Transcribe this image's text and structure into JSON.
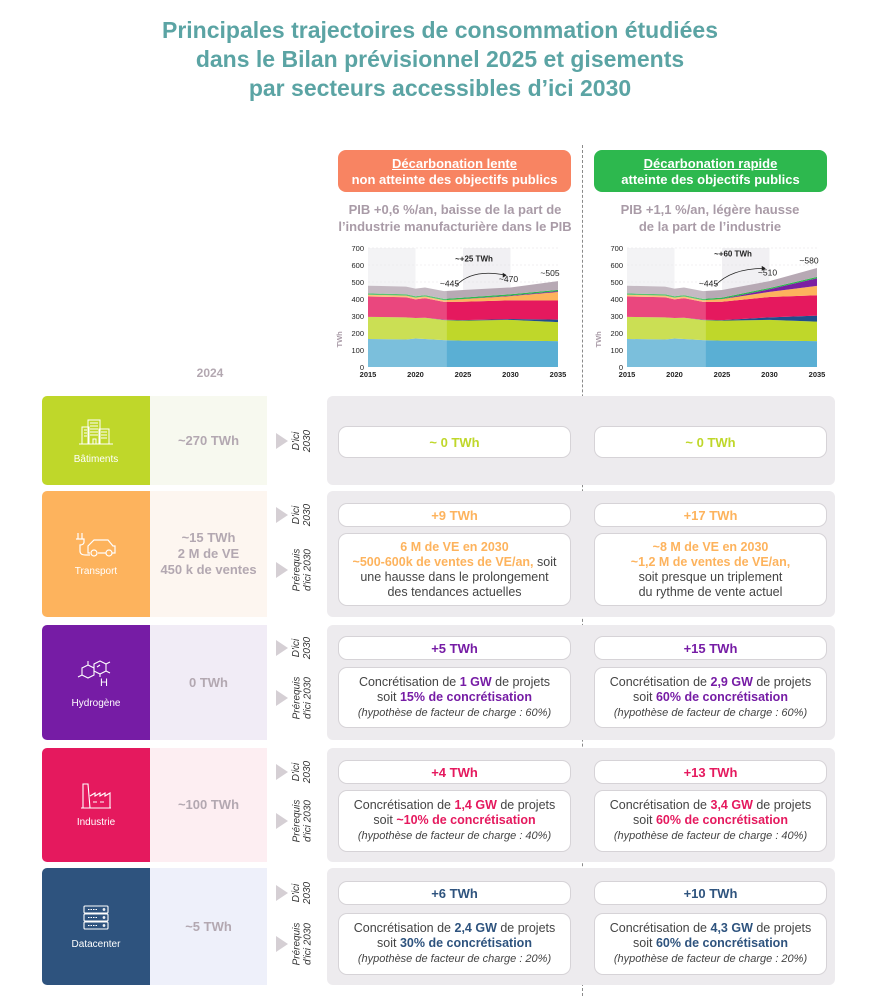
{
  "title": [
    "Principales trajectoires de consommation étudiées",
    "dans le Bilan prévisionnel 2025 et gisements",
    "par secteurs accessibles d’ici 2030"
  ],
  "scenarios": [
    {
      "title": "Décarbonation lente",
      "subtitle": "non atteinte des objectifs publics",
      "color": "#F88462",
      "context": [
        "PIB +0,6 %/an, baisse de la part de",
        "l’industrie manufacturière dans le PIB"
      ]
    },
    {
      "title": "Décarbonation rapide",
      "subtitle": "atteinte des objectifs publics",
      "color": "#2DB84E",
      "context": [
        "PIB +1,1 %/an, légère hausse",
        "de la part de l’industrie"
      ]
    }
  ],
  "year_2024_label": "2024",
  "chart_data": [
    {
      "type": "area",
      "stacked": true,
      "ylabel": "TWh",
      "ylim": [
        0,
        700
      ],
      "xlim": [
        2015,
        2035
      ],
      "yticks": [
        0,
        100,
        200,
        300,
        400,
        500,
        600,
        700
      ],
      "xticks": [
        2015,
        2020,
        2025,
        2030,
        2035
      ],
      "x": [
        2015,
        2019,
        2020,
        2021,
        2023,
        2025,
        2030,
        2035
      ],
      "series": [
        {
          "color": "#5AAFD4",
          "values": [
            165,
            162,
            168,
            165,
            158,
            155,
            155,
            152
          ]
        },
        {
          "color": "#BFD72A",
          "values": [
            130,
            130,
            120,
            125,
            118,
            118,
            122,
            112
          ]
        },
        {
          "color": "#1F4E8C",
          "values": [
            0,
            0,
            0,
            0,
            2,
            3,
            5,
            15
          ]
        },
        {
          "color": "#E5195E",
          "values": [
            120,
            118,
            110,
            115,
            105,
            108,
            110,
            112
          ]
        },
        {
          "color": "#FDB35D",
          "values": [
            10,
            10,
            10,
            10,
            10,
            15,
            25,
            50
          ]
        },
        {
          "color": "#7B1FA2",
          "values": [
            0,
            0,
            0,
            0,
            0,
            1,
            3,
            5
          ]
        },
        {
          "color": "#2DB84E",
          "values": [
            8,
            8,
            8,
            8,
            8,
            8,
            8,
            8
          ]
        },
        {
          "color": "#B7A9B4",
          "values": [
            45,
            45,
            45,
            45,
            45,
            45,
            40,
            51
          ]
        }
      ],
      "annotations": [
        {
          "text": "~445",
          "x": 2024,
          "y": 445
        },
        {
          "text": "~470",
          "x": 2030,
          "y": 470
        },
        {
          "text": "~505",
          "x": 2035,
          "y": 505
        },
        {
          "text": "~+25 TWh",
          "x": 2027,
          "y": 620
        }
      ]
    },
    {
      "type": "area",
      "stacked": true,
      "ylabel": "TWh",
      "ylim": [
        0,
        700
      ],
      "xlim": [
        2015,
        2035
      ],
      "yticks": [
        0,
        100,
        200,
        300,
        400,
        500,
        600,
        700
      ],
      "xticks": [
        2015,
        2020,
        2025,
        2030,
        2035
      ],
      "x": [
        2015,
        2019,
        2020,
        2021,
        2023,
        2025,
        2030,
        2035
      ],
      "series": [
        {
          "color": "#5AAFD4",
          "values": [
            165,
            162,
            168,
            165,
            158,
            155,
            155,
            152
          ]
        },
        {
          "color": "#BFD72A",
          "values": [
            130,
            130,
            120,
            125,
            118,
            118,
            122,
            115
          ]
        },
        {
          "color": "#1F4E8C",
          "values": [
            0,
            0,
            0,
            0,
            2,
            3,
            15,
            35
          ]
        },
        {
          "color": "#E5195E",
          "values": [
            120,
            118,
            110,
            115,
            105,
            108,
            120,
            120
          ]
        },
        {
          "color": "#FDB35D",
          "values": [
            10,
            10,
            10,
            10,
            10,
            15,
            30,
            55
          ]
        },
        {
          "color": "#7B1FA2",
          "values": [
            0,
            0,
            0,
            0,
            0,
            1,
            15,
            45
          ]
        },
        {
          "color": "#2DB84E",
          "values": [
            8,
            8,
            8,
            8,
            8,
            8,
            8,
            8
          ]
        },
        {
          "color": "#B7A9B4",
          "values": [
            45,
            45,
            45,
            45,
            45,
            45,
            40,
            52
          ]
        }
      ],
      "annotations": [
        {
          "text": "~445",
          "x": 2024,
          "y": 445
        },
        {
          "text": "~510",
          "x": 2030,
          "y": 510
        },
        {
          "text": "~580",
          "x": 2035,
          "y": 580
        },
        {
          "text": "~+60 TWh",
          "x": 2027,
          "y": 650
        }
      ]
    }
  ],
  "rows": [
    {
      "label": "Bâtiments",
      "icon": "building-icon",
      "color": "#BFD72A",
      "light": "#F7F9EF",
      "accent": "#BFD72A",
      "value_2024": [
        "~270 TWh"
      ],
      "doici": "D'ici 2030",
      "left": {
        "gain": "~ 0 TWh"
      },
      "right": {
        "gain": "~ 0 TWh"
      }
    },
    {
      "label": "Transport",
      "icon": "electric-car-icon",
      "color": "#FDB35D",
      "light": "#FDF6F0",
      "accent": "#FDB35D",
      "value_2024": [
        "~15 TWh",
        "2 M de VE",
        "450 k de ventes"
      ],
      "doici": "D'ici 2030",
      "prereq": "Prérequis d'ici 2030",
      "left": {
        "gain": "+9 TWh",
        "prereq": [
          [
            {
              "t": "6 M de VE en 2030",
              "s": "a"
            }
          ],
          [
            {
              "t": "~500-600k de ventes de VE/an,",
              "s": "a"
            },
            {
              "t": " soit",
              "s": "p"
            }
          ],
          [
            {
              "t": "une hausse dans le prolongement",
              "s": "p"
            }
          ],
          [
            {
              "t": "des tendances actuelles",
              "s": "p"
            }
          ]
        ]
      },
      "right": {
        "gain": "+17 TWh",
        "prereq": [
          [
            {
              "t": "~8 M de VE en 2030",
              "s": "a"
            }
          ],
          [
            {
              "t": "~1,2 M de ventes de VE/an,",
              "s": "a"
            }
          ],
          [
            {
              "t": "soit presque un triplement",
              "s": "p"
            }
          ],
          [
            {
              "t": "du rythme de vente actuel",
              "s": "p"
            }
          ]
        ]
      }
    },
    {
      "label": "Hydrogène",
      "icon": "hydrogen-molecule-icon",
      "color": "#761CA5",
      "light": "#F1ECF6",
      "accent": "#761CA5",
      "value_2024": [
        "0 TWh"
      ],
      "doici": "D'ici 2030",
      "prereq": "Prérequis d'ici 2030",
      "left": {
        "gain": "+5 TWh",
        "prereq": [
          [
            {
              "t": "Concrétisation de ",
              "s": "p"
            },
            {
              "t": "1 GW",
              "s": "a"
            },
            {
              "t": " de projets",
              "s": "p"
            }
          ],
          [
            {
              "t": "soit ",
              "s": "p"
            },
            {
              "t": "15% de concrétisation",
              "s": "a"
            }
          ],
          [
            {
              "t": "(hypothèse de facteur de charge : 60%)",
              "s": "i"
            }
          ]
        ]
      },
      "right": {
        "gain": "+15 TWh",
        "prereq": [
          [
            {
              "t": "Concrétisation de ",
              "s": "p"
            },
            {
              "t": "2,9 GW",
              "s": "a"
            },
            {
              "t": " de projets",
              "s": "p"
            }
          ],
          [
            {
              "t": "soit ",
              "s": "p"
            },
            {
              "t": "60% de concrétisation",
              "s": "a"
            }
          ],
          [
            {
              "t": "(hypothèse de facteur de charge : 60%)",
              "s": "i"
            }
          ]
        ]
      }
    },
    {
      "label": "Industrie",
      "icon": "factory-icon",
      "color": "#E5195E",
      "light": "#FDEEF2",
      "accent": "#E5195E",
      "value_2024": [
        "~100 TWh"
      ],
      "doici": "D'ici 2030",
      "prereq": "Prérequis d'ici 2030",
      "left": {
        "gain": "+4 TWh",
        "prereq": [
          [
            {
              "t": "Concrétisation de ",
              "s": "p"
            },
            {
              "t": "1,4 GW",
              "s": "a"
            },
            {
              "t": " de projets",
              "s": "p"
            }
          ],
          [
            {
              "t": "soit ",
              "s": "p"
            },
            {
              "t": "~10% de concrétisation",
              "s": "a"
            }
          ],
          [
            {
              "t": "(hypothèse de facteur de charge : 40%)",
              "s": "i"
            }
          ]
        ]
      },
      "right": {
        "gain": "+13 TWh",
        "prereq": [
          [
            {
              "t": "Concrétisation de ",
              "s": "p"
            },
            {
              "t": "3,4 GW",
              "s": "a"
            },
            {
              "t": " de projets",
              "s": "p"
            }
          ],
          [
            {
              "t": "soit ",
              "s": "p"
            },
            {
              "t": "60% de concrétisation",
              "s": "a"
            }
          ],
          [
            {
              "t": "(hypothèse de facteur de charge : 40%)",
              "s": "i"
            }
          ]
        ]
      }
    },
    {
      "label": "Datacenter",
      "icon": "server-rack-icon",
      "color": "#2E537E",
      "light": "#EEF0FA",
      "accent": "#2E537E",
      "value_2024": [
        "~5 TWh"
      ],
      "doici": "D'ici 2030",
      "prereq": "Prérequis d'ici 2030",
      "left": {
        "gain": "+6 TWh",
        "prereq": [
          [
            {
              "t": "Concrétisation de ",
              "s": "p"
            },
            {
              "t": "2,4 GW",
              "s": "a"
            },
            {
              "t": " de projets",
              "s": "p"
            }
          ],
          [
            {
              "t": "soit ",
              "s": "p"
            },
            {
              "t": "30% de concrétisation",
              "s": "a"
            }
          ],
          [
            {
              "t": "(hypothèse de facteur de charge : 20%)",
              "s": "i"
            }
          ]
        ]
      },
      "right": {
        "gain": "+10 TWh",
        "prereq": [
          [
            {
              "t": "Concrétisation de ",
              "s": "p"
            },
            {
              "t": "4,3 GW",
              "s": "a"
            },
            {
              "t": " de projets",
              "s": "p"
            }
          ],
          [
            {
              "t": "soit ",
              "s": "p"
            },
            {
              "t": "60% de concrétisation",
              "s": "a"
            }
          ],
          [
            {
              "t": "(hypothèse de facteur de charge : 20%)",
              "s": "i"
            }
          ]
        ]
      }
    }
  ]
}
